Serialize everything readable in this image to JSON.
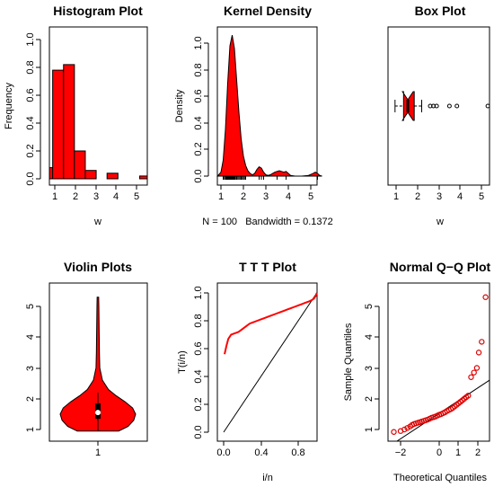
{
  "colors": {
    "fill": "#ff0000",
    "stroke": "#000000",
    "qq_point": "#dd0000"
  },
  "chart_data": [
    {
      "type": "bar",
      "title": "Histogram Plot",
      "xlabel": "w",
      "ylabel": "Frequency",
      "xlim": [
        0.85,
        5.35
      ],
      "ylim": [
        0,
        1.0
      ],
      "xticks": [
        "1",
        "2",
        "3",
        "4",
        "5"
      ],
      "yticks": [
        "0.0",
        "0.2",
        "0.4",
        "0.6",
        "0.8",
        "1.0"
      ],
      "bins": [
        {
          "from": 0.85,
          "to": 1.0,
          "value": 0.08
        },
        {
          "from": 1.0,
          "to": 1.5,
          "value": 0.78
        },
        {
          "from": 1.5,
          "to": 2.0,
          "value": 0.82
        },
        {
          "from": 2.0,
          "to": 2.5,
          "value": 0.2
        },
        {
          "from": 2.5,
          "to": 3.0,
          "value": 0.06
        },
        {
          "from": 3.0,
          "to": 3.5,
          "value": 0.0
        },
        {
          "from": 3.5,
          "to": 4.0,
          "value": 0.04
        },
        {
          "from": 4.0,
          "to": 4.5,
          "value": 0.0
        },
        {
          "from": 4.5,
          "to": 5.0,
          "value": 0.0
        },
        {
          "from": 5.0,
          "to": 5.35,
          "value": 0.02
        }
      ]
    },
    {
      "type": "area",
      "title": "Kernel Density",
      "xlabel": "N = 100   Bandwidth = 0.1372",
      "ylabel": "Density",
      "xlim": [
        0.6,
        5.5
      ],
      "ylim": [
        0,
        1.12
      ],
      "xticks": [
        "1",
        "2",
        "3",
        "4",
        "5"
      ],
      "yticks": [
        "0.0",
        "0.2",
        "0.4",
        "0.6",
        "0.8",
        "1.0"
      ],
      "x": [
        0.85,
        1.0,
        1.1,
        1.2,
        1.3,
        1.4,
        1.5,
        1.6,
        1.7,
        1.8,
        1.9,
        2.0,
        2.1,
        2.2,
        2.3,
        2.4,
        2.5,
        2.6,
        2.7,
        2.8,
        2.9,
        3.0,
        3.1,
        3.2,
        3.3,
        3.4,
        3.6,
        3.7,
        3.8,
        3.9,
        4.0,
        4.1,
        4.3,
        4.6,
        4.9,
        5.1,
        5.2,
        5.3,
        5.4,
        5.5
      ],
      "y": [
        0.0,
        0.03,
        0.12,
        0.35,
        0.7,
        0.98,
        1.06,
        0.96,
        0.72,
        0.48,
        0.28,
        0.15,
        0.08,
        0.04,
        0.02,
        0.01,
        0.02,
        0.05,
        0.07,
        0.06,
        0.03,
        0.01,
        0.005,
        0.01,
        0.02,
        0.03,
        0.04,
        0.035,
        0.03,
        0.035,
        0.02,
        0.005,
        0.0,
        0.0,
        0.005,
        0.02,
        0.03,
        0.02,
        0.005,
        0.0
      ],
      "rug": [
        1.1,
        1.15,
        1.2,
        1.22,
        1.25,
        1.28,
        1.3,
        1.33,
        1.35,
        1.38,
        1.4,
        1.42,
        1.45,
        1.48,
        1.5,
        1.52,
        1.55,
        1.58,
        1.6,
        1.62,
        1.65,
        1.7,
        1.75,
        1.8,
        1.85,
        1.9,
        1.95,
        2.0,
        2.05,
        2.1,
        2.7,
        2.8,
        2.9,
        3.5,
        3.9,
        5.3
      ]
    },
    {
      "type": "box",
      "title": "Box Plot",
      "xlabel": "w",
      "xlim": [
        0.75,
        5.45
      ],
      "xticks": [
        "1",
        "2",
        "3",
        "4",
        "5"
      ],
      "whisker_low": 0.95,
      "q1": 1.35,
      "median": 1.55,
      "q3": 1.85,
      "whisker_high": 2.2,
      "outliers": [
        2.6,
        2.75,
        2.9,
        3.5,
        3.85,
        5.3
      ]
    },
    {
      "type": "violin",
      "title": "Violin Plots",
      "xticks": [
        "1"
      ],
      "ylim": [
        0.75,
        5.45
      ],
      "yticks": [
        "1",
        "2",
        "3",
        "4",
        "5"
      ],
      "y": [
        0.95,
        1.1,
        1.3,
        1.5,
        1.7,
        1.9,
        2.1,
        2.3,
        2.6,
        3.0,
        3.5,
        4.0,
        4.5,
        5.0,
        5.3
      ],
      "w": [
        0.55,
        0.8,
        0.95,
        1.0,
        0.92,
        0.72,
        0.48,
        0.28,
        0.12,
        0.05,
        0.04,
        0.035,
        0.03,
        0.025,
        0.02
      ],
      "whisker_low": 0.95,
      "q1": 1.35,
      "median": 1.55,
      "q3": 1.85,
      "whisker_high": 2.2
    },
    {
      "type": "line",
      "title": "T T T Plot",
      "xlabel": "i/n",
      "ylabel": "T(i/n)",
      "xlim": [
        -0.02,
        1.0
      ],
      "ylim": [
        -0.02,
        1.04
      ],
      "xticks": [
        "0.0",
        "0.4",
        "0.8"
      ],
      "yticks": [
        "0.0",
        "0.2",
        "0.4",
        "0.6",
        "0.8",
        "1.0"
      ],
      "x": [
        0.01,
        0.03,
        0.05,
        0.08,
        0.12,
        0.16,
        0.2,
        0.24,
        0.28,
        0.32,
        0.36,
        0.4,
        0.44,
        0.48,
        0.52,
        0.56,
        0.6,
        0.64,
        0.68,
        0.72,
        0.76,
        0.8,
        0.84,
        0.88,
        0.92,
        0.95,
        0.97,
        0.99,
        1.0
      ],
      "y": [
        0.56,
        0.62,
        0.67,
        0.7,
        0.71,
        0.72,
        0.74,
        0.76,
        0.78,
        0.79,
        0.8,
        0.81,
        0.82,
        0.83,
        0.84,
        0.85,
        0.86,
        0.87,
        0.88,
        0.89,
        0.9,
        0.91,
        0.92,
        0.93,
        0.94,
        0.95,
        0.96,
        0.98,
        1.0
      ],
      "reference": [
        [
          0,
          0
        ],
        [
          1,
          1
        ]
      ]
    },
    {
      "type": "scatter",
      "title": "Normal Q−Q Plot",
      "xlabel": "Theoretical Quantiles",
      "ylabel": "Sample Quantiles",
      "xlim": [
        -2.6,
        2.6
      ],
      "ylim": [
        0.75,
        5.45
      ],
      "xticks": [
        "−2",
        "0",
        "1",
        "2"
      ],
      "xtick_values": [
        -2,
        0,
        1,
        2
      ],
      "yticks": [
        "1",
        "2",
        "3",
        "4",
        "5"
      ],
      "x": [
        -2.35,
        -2.0,
        -1.8,
        -1.65,
        -1.5,
        -1.4,
        -1.3,
        -1.2,
        -1.1,
        -1.0,
        -0.9,
        -0.8,
        -0.7,
        -0.6,
        -0.5,
        -0.4,
        -0.3,
        -0.2,
        -0.1,
        0.0,
        0.1,
        0.2,
        0.3,
        0.4,
        0.5,
        0.6,
        0.7,
        0.8,
        0.9,
        1.0,
        1.1,
        1.2,
        1.3,
        1.4,
        1.5,
        1.65,
        1.8,
        1.95,
        2.05,
        2.2,
        2.4
      ],
      "y": [
        0.92,
        0.95,
        1.0,
        1.05,
        1.1,
        1.15,
        1.18,
        1.2,
        1.22,
        1.24,
        1.26,
        1.28,
        1.3,
        1.32,
        1.35,
        1.38,
        1.4,
        1.42,
        1.45,
        1.48,
        1.5,
        1.53,
        1.56,
        1.6,
        1.63,
        1.66,
        1.7,
        1.75,
        1.8,
        1.85,
        1.9,
        1.95,
        2.0,
        2.05,
        2.1,
        2.7,
        2.85,
        3.0,
        3.5,
        3.85,
        5.3
      ],
      "reference": [
        [
          -2.6,
          0.45
        ],
        [
          2.6,
          2.6
        ]
      ]
    }
  ]
}
